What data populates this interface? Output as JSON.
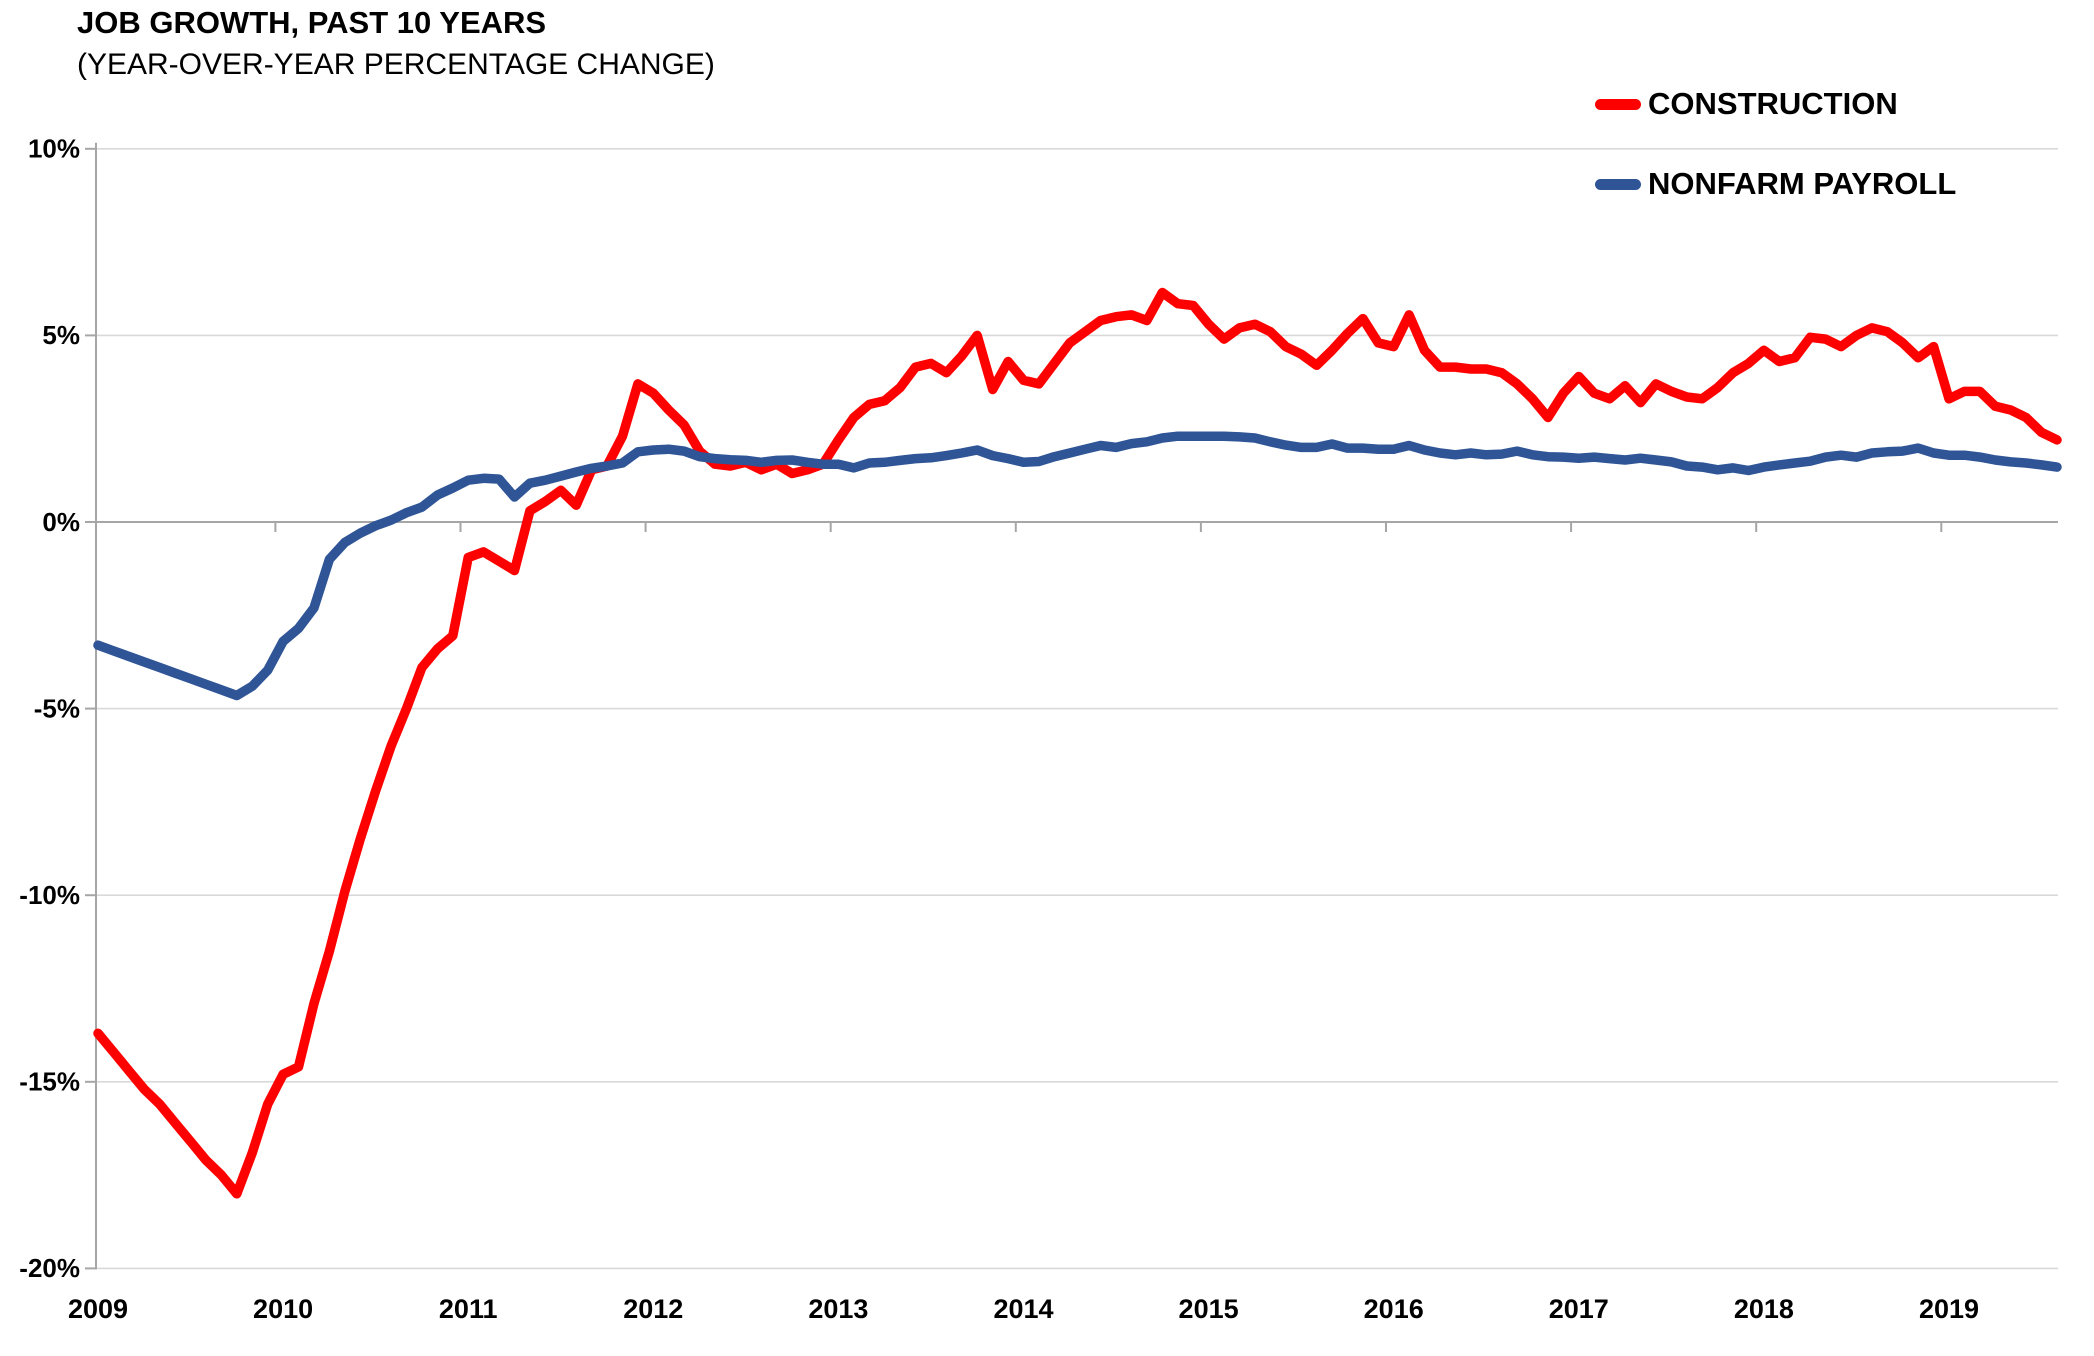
{
  "header": {
    "title": "JOB GROWTH, PAST 10 YEARS",
    "subtitle": "(YEAR-OVER-YEAR PERCENTAGE CHANGE)"
  },
  "legend": {
    "items": [
      {
        "label": "CONSTRUCTION",
        "color": "#FF0000"
      },
      {
        "label": "NONFARM PAYROLL",
        "color": "#2F5597"
      }
    ],
    "position": "top-right"
  },
  "colors": {
    "background": "#FFFFFF",
    "gridline": "#D9D9D9",
    "axis": "#A6A6A6",
    "text": "#000000",
    "construction": "#FF0000",
    "nonfarm_payroll": "#2F5597"
  },
  "chart_data": {
    "type": "line",
    "title": "JOB GROWTH, PAST 10 YEARS",
    "subtitle": "(YEAR-OVER-YEAR PERCENTAGE CHANGE)",
    "xlabel": "",
    "ylabel": "",
    "x_interval": "monthly",
    "x_start": "2009-01",
    "x_end": "2019-08",
    "ylim": [
      -20,
      10
    ],
    "grid": "horizontal",
    "legend_position": "top-right",
    "y_ticks": [
      {
        "label": "10%",
        "value": 10
      },
      {
        "label": "5%",
        "value": 5
      },
      {
        "label": "0%",
        "value": 0
      },
      {
        "label": "-5%",
        "value": -5
      },
      {
        "label": "-10%",
        "value": -10
      },
      {
        "label": "-15%",
        "value": -15
      },
      {
        "label": "-20%",
        "value": -20
      }
    ],
    "x_ticks": [
      {
        "label": "2009",
        "month_index": 0
      },
      {
        "label": "2010",
        "month_index": 12
      },
      {
        "label": "2011",
        "month_index": 24
      },
      {
        "label": "2012",
        "month_index": 36
      },
      {
        "label": "2013",
        "month_index": 48
      },
      {
        "label": "2014",
        "month_index": 60
      },
      {
        "label": "2015",
        "month_index": 72
      },
      {
        "label": "2016",
        "month_index": 84
      },
      {
        "label": "2017",
        "month_index": 96
      },
      {
        "label": "2018",
        "month_index": 108
      },
      {
        "label": "2019",
        "month_index": 120
      }
    ],
    "series": [
      {
        "name": "CONSTRUCTION",
        "color": "#FF0000",
        "values": [
          -13.7,
          -14.2,
          -14.7,
          -15.2,
          -15.6,
          -16.1,
          -16.6,
          -17.1,
          -17.5,
          -18.0,
          -16.9,
          -15.6,
          -14.8,
          -14.6,
          -12.9,
          -11.5,
          -9.9,
          -8.5,
          -7.2,
          -6.0,
          -5.0,
          -3.9,
          -3.4,
          -3.05,
          -0.95,
          -0.8,
          -1.05,
          -1.3,
          0.3,
          0.55,
          0.85,
          0.45,
          1.4,
          1.5,
          2.3,
          3.7,
          3.45,
          3.0,
          2.6,
          1.9,
          1.55,
          1.5,
          1.6,
          1.4,
          1.55,
          1.3,
          1.4,
          1.55,
          2.2,
          2.8,
          3.15,
          3.25,
          3.6,
          4.15,
          4.25,
          4.0,
          4.45,
          5.0,
          3.55,
          4.3,
          3.8,
          3.7,
          4.25,
          4.8,
          5.1,
          5.4,
          5.5,
          5.55,
          5.4,
          6.15,
          5.85,
          5.8,
          5.3,
          4.9,
          5.2,
          5.3,
          5.1,
          4.7,
          4.5,
          4.2,
          4.6,
          5.05,
          5.45,
          4.8,
          4.7,
          5.55,
          4.6,
          4.15,
          4.15,
          4.1,
          4.1,
          4.0,
          3.7,
          3.3,
          2.8,
          3.45,
          3.9,
          3.45,
          3.3,
          3.65,
          3.2,
          3.7,
          3.5,
          3.35,
          3.3,
          3.6,
          4.0,
          4.25,
          4.6,
          4.3,
          4.4,
          4.95,
          4.9,
          4.7,
          5.0,
          5.2,
          5.1,
          4.8,
          4.4,
          4.7,
          3.3,
          3.5,
          3.5,
          3.1,
          3.0,
          2.8,
          2.4,
          2.2
        ]
      },
      {
        "name": "NONFARM PAYROLL",
        "color": "#2F5597",
        "values": [
          -3.3,
          -3.45,
          -3.6,
          -3.75,
          -3.9,
          -4.05,
          -4.2,
          -4.35,
          -4.5,
          -4.65,
          -4.4,
          -3.97,
          -3.2,
          -2.85,
          -2.3,
          -1.0,
          -0.55,
          -0.3,
          -0.1,
          0.05,
          0.25,
          0.4,
          0.72,
          0.91,
          1.12,
          1.17,
          1.15,
          0.67,
          1.04,
          1.12,
          1.23,
          1.34,
          1.44,
          1.5,
          1.58,
          1.88,
          1.93,
          1.95,
          1.9,
          1.75,
          1.7,
          1.67,
          1.65,
          1.6,
          1.65,
          1.66,
          1.6,
          1.55,
          1.55,
          1.45,
          1.58,
          1.6,
          1.65,
          1.7,
          1.72,
          1.78,
          1.85,
          1.93,
          1.78,
          1.7,
          1.6,
          1.62,
          1.75,
          1.85,
          1.95,
          2.05,
          2.0,
          2.1,
          2.15,
          2.25,
          2.3,
          2.3,
          2.3,
          2.3,
          2.28,
          2.25,
          2.15,
          2.06,
          2.0,
          2.0,
          2.09,
          1.98,
          1.98,
          1.95,
          1.95,
          2.05,
          1.93,
          1.85,
          1.8,
          1.85,
          1.8,
          1.82,
          1.9,
          1.8,
          1.75,
          1.74,
          1.71,
          1.74,
          1.7,
          1.66,
          1.71,
          1.66,
          1.61,
          1.5,
          1.47,
          1.4,
          1.45,
          1.38,
          1.47,
          1.53,
          1.58,
          1.63,
          1.74,
          1.79,
          1.74,
          1.85,
          1.88,
          1.9,
          1.98,
          1.85,
          1.79,
          1.79,
          1.74,
          1.66,
          1.61,
          1.58,
          1.53,
          1.47
        ]
      }
    ]
  }
}
